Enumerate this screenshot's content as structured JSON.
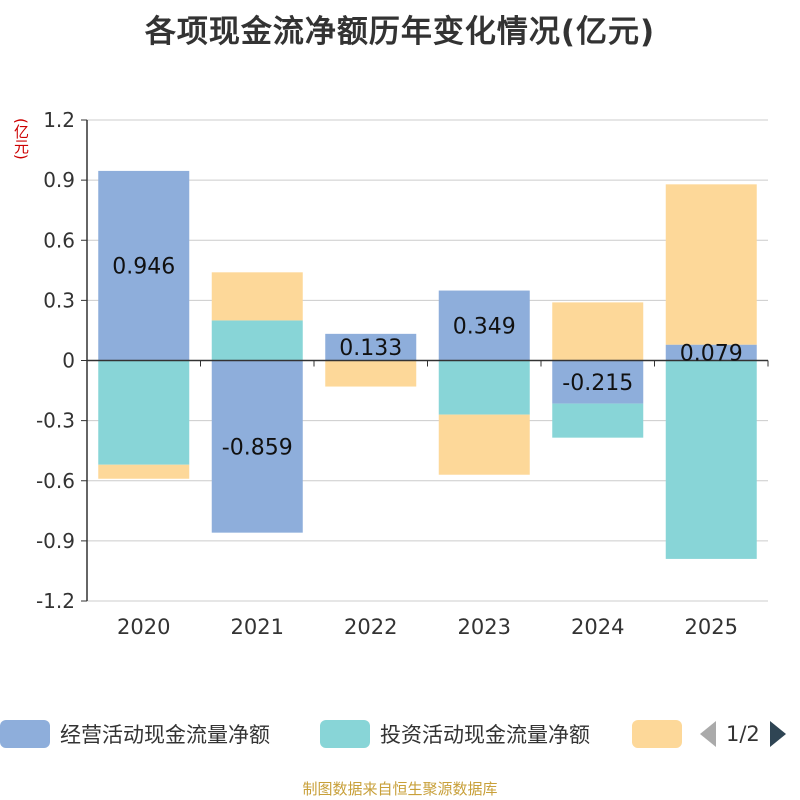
{
  "chart_data": {
    "type": "bar",
    "stacked": true,
    "title": "各项现金流净额历年变化情况(亿元)",
    "ylabel": "(亿元)",
    "ylim": [
      -1.2,
      1.2
    ],
    "yticks": [
      1.2,
      0.9,
      0.6,
      0.3,
      0,
      -0.3,
      -0.6,
      -0.9,
      -1.2
    ],
    "ytick_labels": [
      "1.2",
      "0.9",
      "0.6",
      "0.3",
      "0",
      "-0.3",
      "-0.6",
      "-0.9",
      "-1.2"
    ],
    "categories": [
      "2020",
      "2021",
      "2022",
      "2023",
      "2024",
      "2025"
    ],
    "series": [
      {
        "name": "经营活动现金流量净额",
        "color": "#8eaedb",
        "values": [
          0.946,
          -0.859,
          0.133,
          0.349,
          -0.215,
          0.079
        ],
        "labels": [
          "0.946",
          "-0.859",
          "0.133",
          "0.349",
          "-0.215",
          "0.079"
        ]
      },
      {
        "name": "投资活动现金流量净额",
        "color": "#88d5d7",
        "values": [
          -0.52,
          0.2,
          0.0,
          -0.27,
          -0.17,
          -0.99
        ]
      },
      {
        "name": "",
        "color": "#fdd899",
        "values": [
          -0.07,
          0.24,
          -0.13,
          -0.3,
          0.29,
          0.8
        ]
      }
    ],
    "grid": true,
    "legend_position": "bottom"
  },
  "legend": {
    "items": [
      {
        "label": "经营活动现金流量净额",
        "color": "#8eaedb"
      },
      {
        "label": "投资活动现金流量净额",
        "color": "#88d5d7"
      },
      {
        "label": "",
        "color": "#fdd899"
      }
    ],
    "page_text": "1/2"
  },
  "source": "制图数据来自恒生聚源数据库"
}
